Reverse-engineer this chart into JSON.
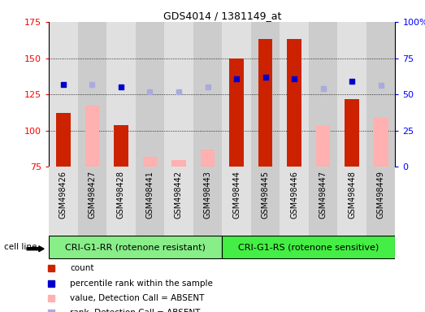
{
  "title": "GDS4014 / 1381149_at",
  "samples": [
    "GSM498426",
    "GSM498427",
    "GSM498428",
    "GSM498441",
    "GSM498442",
    "GSM498443",
    "GSM498444",
    "GSM498445",
    "GSM498446",
    "GSM498447",
    "GSM498448",
    "GSM498449"
  ],
  "count_values": [
    112,
    null,
    104,
    null,
    null,
    null,
    150,
    163,
    163,
    null,
    122,
    null
  ],
  "absent_value_values": [
    null,
    117,
    null,
    82,
    80,
    87,
    null,
    null,
    null,
    103,
    null,
    109
  ],
  "rank_dark_blue": [
    132,
    null,
    130,
    null,
    null,
    null,
    136,
    137,
    136,
    null,
    134,
    null
  ],
  "rank_light_blue": [
    null,
    132,
    null,
    127,
    127,
    130,
    null,
    null,
    null,
    129,
    null,
    131
  ],
  "ylim": [
    75,
    175
  ],
  "y2lim": [
    0,
    100
  ],
  "yticks": [
    75,
    100,
    125,
    150,
    175
  ],
  "y2ticks": [
    0,
    25,
    50,
    75,
    100
  ],
  "group1_label": "CRI-G1-RR (rotenone resistant)",
  "group2_label": "CRI-G1-RS (rotenone sensitive)",
  "group1_indices": [
    0,
    1,
    2,
    3,
    4,
    5
  ],
  "group2_indices": [
    6,
    7,
    8,
    9,
    10,
    11
  ],
  "cell_line_label": "cell line",
  "legend_items": [
    {
      "label": "count",
      "color": "#cc2200"
    },
    {
      "label": "percentile rank within the sample",
      "color": "#0000cc"
    },
    {
      "label": "value, Detection Call = ABSENT",
      "color": "#ffb0b0"
    },
    {
      "label": "rank, Detection Call = ABSENT",
      "color": "#aaaadd"
    }
  ],
  "bar_width": 0.5,
  "count_color": "#cc2200",
  "absent_value_color": "#ffb0b0",
  "rank_dark_color": "#0000cc",
  "rank_light_color": "#aaaadd",
  "col_bg_odd": "#e0e0e0",
  "col_bg_even": "#cccccc",
  "group1_bg": "#88ee88",
  "group2_bg": "#44ee44"
}
